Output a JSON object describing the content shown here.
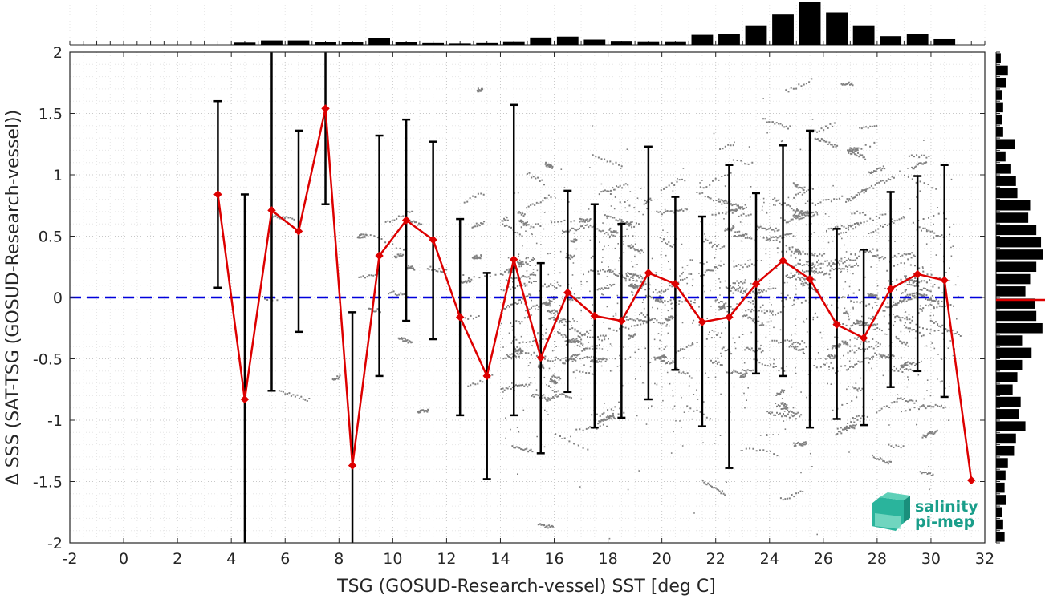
{
  "chart_data": {
    "type": "line",
    "xlabel": "TSG (GOSUD-Research-vessel) SST [deg C]",
    "ylabel": "Δ SSS (SAT-TSG (GOSUD-Research-vessel))",
    "xlim": [
      -2,
      32
    ],
    "ylim": [
      -2,
      2
    ],
    "xticks": [
      -2,
      0,
      2,
      4,
      6,
      8,
      10,
      12,
      14,
      16,
      18,
      20,
      22,
      24,
      26,
      28,
      30,
      32
    ],
    "yticks": [
      -2,
      -1.5,
      -1,
      -0.5,
      0,
      0.5,
      1,
      1.5,
      2
    ],
    "xtick_labels": [
      "-2",
      "0",
      "2",
      "4",
      "6",
      "8",
      "10",
      "12",
      "14",
      "16",
      "18",
      "20",
      "22",
      "24",
      "26",
      "28",
      "30",
      "32"
    ],
    "ytick_labels": [
      "-2",
      "-1.5",
      "-1",
      "-0.5",
      "0",
      "0.5",
      "1",
      "1.5",
      "2"
    ],
    "grid": true,
    "reference_line": {
      "y": 0,
      "color": "#0000dd",
      "style": "dashed"
    },
    "mean_series": {
      "color": "#dd0000",
      "marker": "diamond",
      "x": [
        3.5,
        4.5,
        5.5,
        6.5,
        7.5,
        8.5,
        9.5,
        10.5,
        11.5,
        12.5,
        13.5,
        14.5,
        15.5,
        16.5,
        17.5,
        18.5,
        19.5,
        20.5,
        21.5,
        22.5,
        23.5,
        24.5,
        25.5,
        26.5,
        27.5,
        28.5,
        29.5,
        30.5,
        31.5
      ],
      "y": [
        0.84,
        -0.83,
        0.71,
        0.54,
        1.54,
        -1.37,
        0.34,
        0.63,
        0.47,
        -0.16,
        -0.64,
        0.31,
        -0.49,
        0.04,
        -0.15,
        -0.19,
        0.2,
        0.11,
        -0.2,
        -0.16,
        0.11,
        0.3,
        0.15,
        -0.22,
        -0.33,
        0.07,
        0.19,
        0.14,
        -1.49
      ]
    },
    "error_bars": {
      "color": "#000000",
      "x": [
        3.5,
        4.5,
        5.5,
        6.5,
        7.5,
        8.5,
        9.5,
        10.5,
        11.5,
        12.5,
        13.5,
        14.5,
        15.5,
        16.5,
        17.5,
        18.5,
        19.5,
        20.5,
        21.5,
        22.5,
        23.5,
        24.5,
        25.5,
        26.5,
        27.5,
        28.5,
        29.5,
        30.5
      ],
      "lower": [
        0.08,
        -2.0,
        -0.76,
        -0.28,
        0.76,
        -2.0,
        -0.64,
        -0.19,
        -0.34,
        -0.96,
        -1.48,
        -0.96,
        -1.27,
        -0.77,
        -1.06,
        -0.98,
        -0.83,
        -0.59,
        -1.05,
        -1.39,
        -0.62,
        -0.64,
        -1.06,
        -0.99,
        -1.04,
        -0.73,
        -0.6,
        -0.81
      ],
      "upper": [
        1.6,
        0.84,
        2.0,
        1.36,
        2.0,
        -0.12,
        1.32,
        1.45,
        1.27,
        0.64,
        0.2,
        1.57,
        0.28,
        0.87,
        0.76,
        0.6,
        1.23,
        0.82,
        0.66,
        1.08,
        0.85,
        1.24,
        1.36,
        0.56,
        0.39,
        0.86,
        0.99,
        1.08
      ]
    },
    "scatter_color": "#808080",
    "top_histogram": {
      "x_centers": [
        4.5,
        5.5,
        6.5,
        7.5,
        8.5,
        9.5,
        10.5,
        11.5,
        12.5,
        13.5,
        14.5,
        15.5,
        16.5,
        17.5,
        18.5,
        19.5,
        20.5,
        21.5,
        22.5,
        23.5,
        24.5,
        25.5,
        26.5,
        27.5,
        28.5,
        29.5,
        30.5
      ],
      "relative_counts": [
        0.05,
        0.1,
        0.1,
        0.06,
        0.06,
        0.16,
        0.06,
        0.04,
        0.03,
        0.04,
        0.08,
        0.17,
        0.19,
        0.12,
        0.09,
        0.08,
        0.08,
        0.23,
        0.25,
        0.45,
        0.7,
        1.0,
        0.75,
        0.45,
        0.2,
        0.25,
        0.13
      ]
    },
    "right_histogram": {
      "y_centers": [
        1.95,
        1.85,
        1.75,
        1.65,
        1.55,
        1.45,
        1.35,
        1.25,
        1.15,
        1.05,
        0.95,
        0.85,
        0.75,
        0.65,
        0.55,
        0.45,
        0.35,
        0.25,
        0.15,
        0.05,
        -0.05,
        -0.15,
        -0.25,
        -0.35,
        -0.45,
        -0.55,
        -0.65,
        -0.75,
        -0.85,
        -0.95,
        -1.05,
        -1.15,
        -1.25,
        -1.35,
        -1.45,
        -1.55,
        -1.65,
        -1.75,
        -1.85,
        -1.95
      ],
      "relative_counts": [
        0.1,
        0.25,
        0.22,
        0.12,
        0.15,
        0.12,
        0.15,
        0.4,
        0.2,
        0.32,
        0.42,
        0.45,
        0.72,
        0.68,
        0.85,
        0.95,
        1.0,
        0.85,
        0.72,
        0.62,
        0.82,
        0.85,
        0.98,
        0.55,
        0.75,
        0.55,
        0.45,
        0.35,
        0.52,
        0.48,
        0.62,
        0.42,
        0.38,
        0.25,
        0.2,
        0.18,
        0.22,
        0.12,
        0.15,
        0.18
      ]
    },
    "right_histogram_mean": -0.02
  },
  "logo": {
    "line1": "salinity",
    "line2": "pi-mep"
  }
}
